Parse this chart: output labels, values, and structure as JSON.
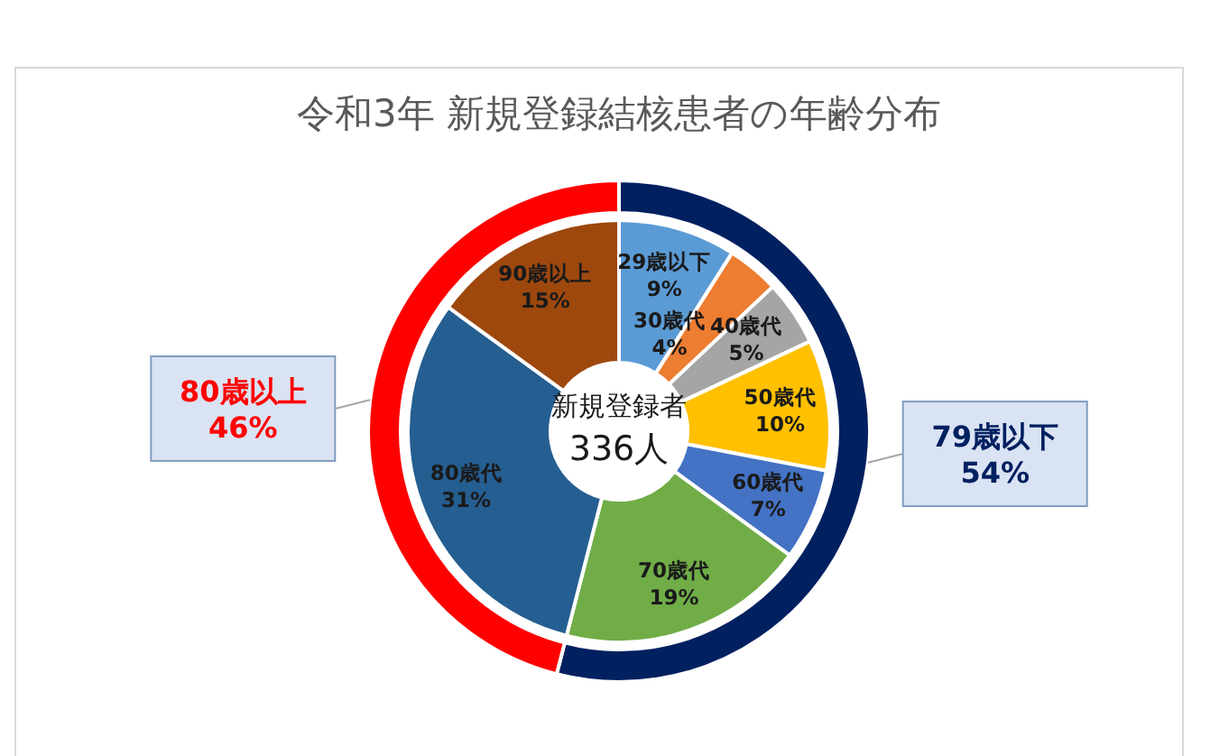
{
  "chart_data": [
    {
      "type": "donut",
      "title": "令和3年 新規登録結核患者の年齢分布",
      "annotations": [
        "新規登録者",
        "336人"
      ],
      "categories": [
        "29歳以下",
        "30歳代",
        "40歳代",
        "50歳代",
        "60歳代",
        "70歳代",
        "80歳代",
        "90歳以上"
      ],
      "values": [
        9,
        4,
        5,
        10,
        7,
        19,
        31,
        15
      ],
      "colors": [
        "#5b9bd5",
        "#ed7d31",
        "#a5a5a5",
        "#ffc000",
        "#4472c4",
        "#70ad47",
        "#255e91",
        "#9e480e"
      ],
      "value_labels": [
        "9%",
        "4%",
        "5%",
        "10%",
        "7%",
        "19%",
        "31%",
        "15%"
      ]
    },
    {
      "type": "donut",
      "categories": [
        "79歳以下",
        "80歳以上"
      ],
      "values": [
        54,
        46
      ],
      "colors": [
        "#002060",
        "#ff0000"
      ],
      "value_labels": [
        "54%",
        "46%"
      ]
    }
  ]
}
